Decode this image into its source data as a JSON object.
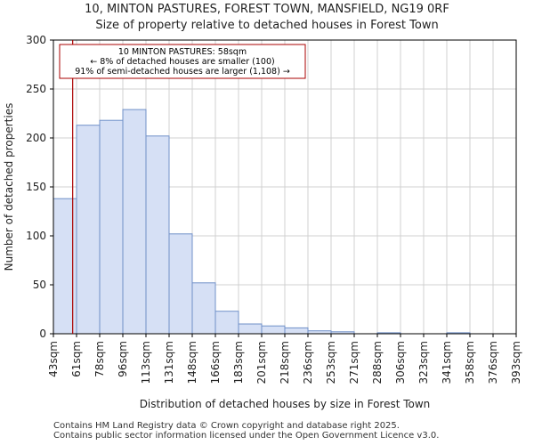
{
  "chart_data": {
    "type": "histogram",
    "title_line1": "10, MINTON PASTURES, FOREST TOWN, MANSFIELD, NG19 0RF",
    "title_line2": "Size of property relative to detached houses in Forest Town",
    "xlabel": "Distribution of detached houses by size in Forest Town",
    "ylabel": "Number of detached properties",
    "ylim": [
      0,
      300
    ],
    "yticks": [
      0,
      50,
      100,
      150,
      200,
      250,
      300
    ],
    "categories": [
      "43sqm",
      "61sqm",
      "78sqm",
      "96sqm",
      "113sqm",
      "131sqm",
      "148sqm",
      "166sqm",
      "183sqm",
      "201sqm",
      "218sqm",
      "236sqm",
      "253sqm",
      "271sqm",
      "288sqm",
      "306sqm",
      "323sqm",
      "341sqm",
      "358sqm",
      "376sqm",
      "393sqm"
    ],
    "values": [
      138,
      213,
      218,
      229,
      202,
      102,
      52,
      23,
      10,
      8,
      6,
      3,
      2,
      0,
      1,
      0,
      0,
      1,
      0,
      0
    ],
    "marker": {
      "value_sqm": 58,
      "line1": "10 MINTON PASTURES: 58sqm",
      "line2": "← 8% of detached houses are smaller (100)",
      "line3": "91% of semi-detached houses are larger (1,108) →"
    },
    "colors": {
      "bar_fill": "#d6e0f5",
      "bar_stroke": "#7090c8",
      "marker": "#aa0000",
      "grid": "#d0d0d0"
    }
  },
  "footer": {
    "line1": "Contains HM Land Registry data © Crown copyright and database right 2025.",
    "line2": "Contains public sector information licensed under the Open Government Licence v3.0."
  }
}
